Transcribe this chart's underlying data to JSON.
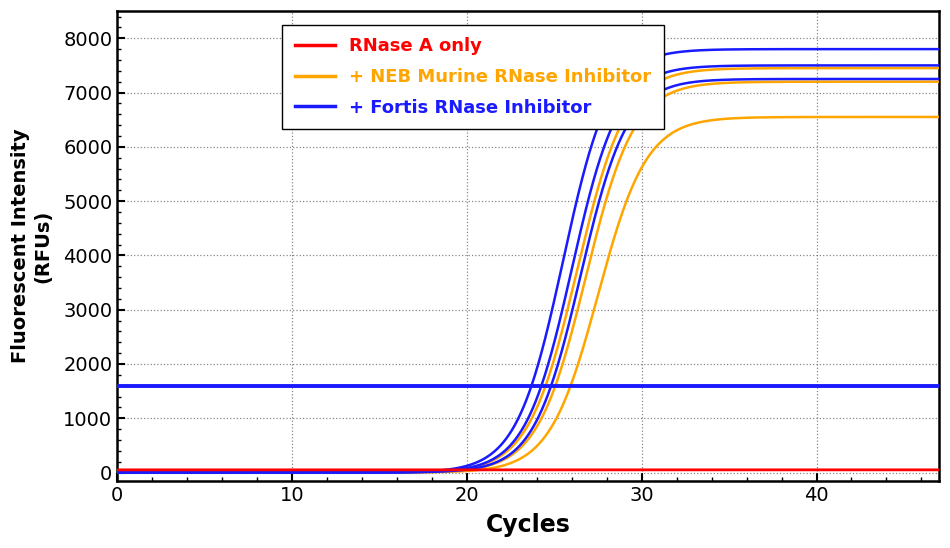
{
  "xlabel": "Cycles",
  "ylabel": "Fluorescent Intensity\n(RFUs)",
  "xlim": [
    0,
    47
  ],
  "ylim": [
    -150,
    8500
  ],
  "yticks": [
    0,
    1000,
    2000,
    3000,
    4000,
    5000,
    6000,
    7000,
    8000
  ],
  "xticks": [
    0,
    10,
    20,
    30,
    40
  ],
  "background_color": "#ffffff",
  "grid_color": "#555555",
  "legend_entries": [
    "RNase A only",
    "+ NEB Murine RNase Inhibitor",
    "+ Fortis RNase Inhibitor"
  ],
  "legend_colors": [
    "#ff0000",
    "#ffa500",
    "#1a1aff"
  ],
  "threshold_line_y": 1600,
  "threshold_color": "#1a1aff",
  "blue_midpoints": [
    25.5,
    26.0,
    26.5
  ],
  "blue_plateaus": [
    7800,
    7500,
    7250
  ],
  "blue_k": 0.75,
  "orange_midpoints": [
    26.3,
    26.8,
    27.5
  ],
  "orange_plateaus": [
    7450,
    7200,
    6550
  ],
  "orange_k": 0.72,
  "red_value": 50,
  "cycles_max": 47
}
